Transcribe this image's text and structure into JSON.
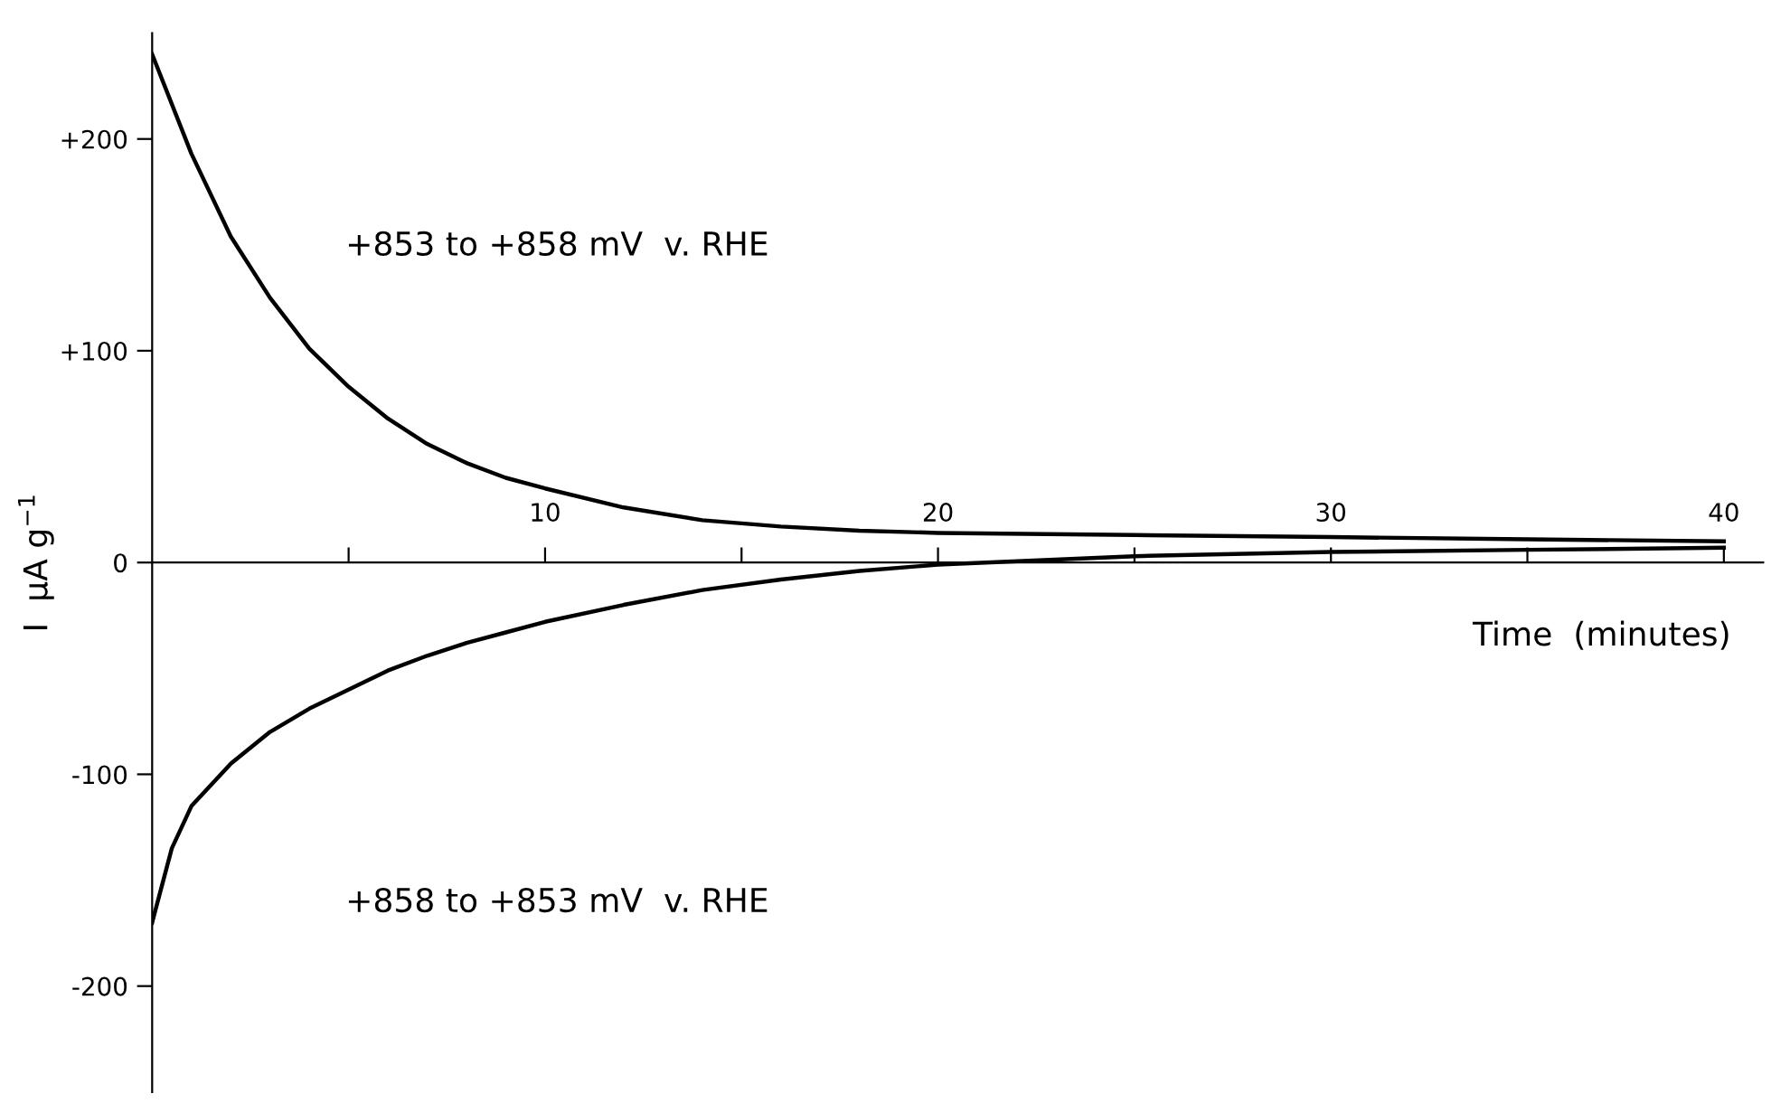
{
  "chart_data": {
    "type": "line",
    "xlabel": "Time  (minutes)",
    "ylabel": "I  μA g$^{−1}$",
    "annotations": [
      "+853 to +858 mV  v. RHE",
      "+858 to +853 mV  v. RHE"
    ],
    "series": [
      {
        "color": "#000000",
        "x": [
          0,
          1,
          2,
          3,
          4,
          5,
          6,
          7,
          8,
          9,
          10,
          12,
          14,
          16,
          18,
          20,
          25,
          30,
          35,
          40
        ],
        "values": [
          240,
          193,
          154,
          125,
          101,
          83,
          68,
          56,
          47,
          40,
          35,
          26,
          20,
          17,
          15,
          14,
          13,
          12,
          11,
          10
        ]
      },
      {
        "color": "#000000",
        "x": [
          0,
          0.5,
          1,
          2,
          3,
          4,
          5,
          6,
          7,
          8,
          9,
          10,
          12,
          14,
          16,
          18,
          20,
          25,
          30,
          35,
          40
        ],
        "values": [
          -170,
          -135,
          -115,
          -95,
          -80,
          -69,
          -60,
          -51,
          -44,
          -38,
          -33,
          -28,
          -20,
          -13,
          -8,
          -4,
          -1,
          3,
          5,
          6,
          7
        ]
      }
    ],
    "xlim": [
      0,
      41
    ],
    "ylim": [
      -250,
      250
    ],
    "xticks": [
      {
        "value": 5,
        "label": null
      },
      10,
      {
        "value": 15,
        "label": null
      },
      20,
      {
        "value": 25,
        "label": null
      },
      30,
      {
        "value": 35,
        "label": null
      },
      40
    ],
    "yticks": [
      {
        "value": -200,
        "label": "-200"
      },
      {
        "value": -100,
        "label": "-100"
      },
      0,
      {
        "value": 100,
        "label": "+100"
      },
      {
        "value": 200,
        "label": "+200"
      }
    ],
    "grid": false,
    "legend": false,
    "marker": "none",
    "line_style": "solid"
  }
}
